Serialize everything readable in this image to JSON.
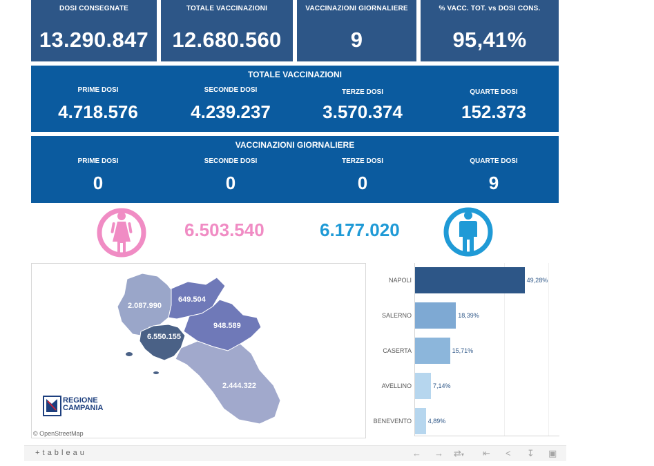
{
  "kpis": [
    {
      "label": "DOSI  CONSEGNATE",
      "value": "13.290.847"
    },
    {
      "label": "TOTALE VACCINAZIONI",
      "value": "12.680.560"
    },
    {
      "label": "VACCINAZIONI GIORNALIERE",
      "value": "9"
    },
    {
      "label": "% VACC. TOT. vs DOSI CONS.",
      "value": "95,41%"
    }
  ],
  "totale": {
    "title": "TOTALE VACCINAZIONI",
    "items": [
      {
        "label": "PRIME DOSI",
        "value": "4.718.576"
      },
      {
        "label": "SECONDE DOSI",
        "value": "4.239.237"
      },
      {
        "label": "TERZE DOSI",
        "value": "3.570.374"
      },
      {
        "label": "QUARTE DOSI",
        "value": "152.373"
      }
    ]
  },
  "giornaliere": {
    "title": "VACCINAZIONI GIORNALIERE",
    "items": [
      {
        "label": "PRIME DOSI",
        "value": "0"
      },
      {
        "label": "SECONDE DOSI",
        "value": "0"
      },
      {
        "label": "TERZE DOSI",
        "value": "0"
      },
      {
        "label": "QUARTE DOSI",
        "value": "9"
      }
    ]
  },
  "gender": {
    "female_value": "6.503.540",
    "male_value": "6.177.020",
    "female_color": "#f08cc4",
    "male_color": "#1f9ad6",
    "female_icon": "female-person-icon",
    "male_icon": "male-person-icon"
  },
  "map": {
    "labels": {
      "caserta": "2.087.990",
      "benevento": "649.504",
      "avellino": "948.589",
      "napoli": "6.550.155",
      "salerno": "2.444.322"
    },
    "logo_line1": "REGIONE",
    "logo_line2": "CAMPANIA",
    "credit": "© OpenStreetMap"
  },
  "chart_data": {
    "type": "bar",
    "orientation": "horizontal",
    "categories": [
      "NAPOLI",
      "SALERNO",
      "CASERTA",
      "AVELLINO",
      "BENEVENTO"
    ],
    "values": [
      49.28,
      18.39,
      15.71,
      7.14,
      4.89
    ],
    "value_labels": [
      "49,28%",
      "18,39%",
      "15,71%",
      "7,14%",
      "4,89%"
    ],
    "colors": [
      "#2d5687",
      "#7ea9d3",
      "#8cb6db",
      "#b6d6ee",
      "#b6d6ee"
    ],
    "xlim": [
      0,
      100
    ],
    "grid": true
  },
  "toolbar": {
    "brand": "+ t a b l e a u",
    "icons": [
      "undo-icon",
      "redo-icon",
      "revert-icon",
      "reset-icon",
      "share-icon",
      "download-icon",
      "fullscreen-icon"
    ]
  }
}
